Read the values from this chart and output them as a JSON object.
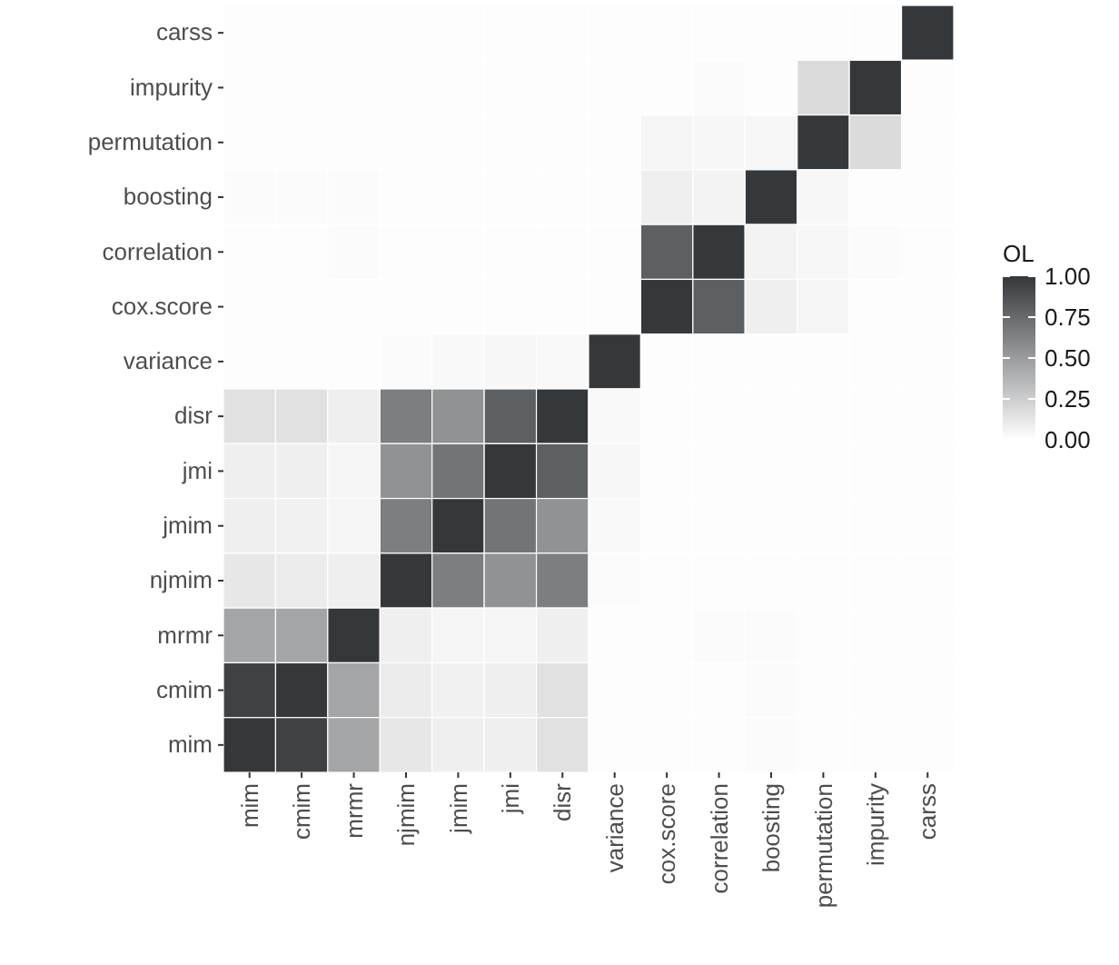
{
  "chart_data": {
    "type": "heatmap",
    "legend_title": "OL",
    "categories": [
      "mim",
      "cmim",
      "mrmr",
      "njmim",
      "jmim",
      "jmi",
      "disr",
      "variance",
      "cox.score",
      "correlation",
      "boosting",
      "permutation",
      "impurity",
      "carss"
    ],
    "y_categories": [
      "carss",
      "impurity",
      "permutation",
      "boosting",
      "correlation",
      "cox.score",
      "variance",
      "disr",
      "jmi",
      "jmim",
      "njmim",
      "mrmr",
      "cmim",
      "mim"
    ],
    "cells": [
      [
        0.01,
        0.01,
        0.01,
        0.01,
        0.01,
        0.01,
        0.01,
        0.01,
        0.01,
        0.01,
        0.01,
        0.01,
        0.01,
        1
      ],
      [
        0.01,
        0.01,
        0.01,
        0.01,
        0.01,
        0.01,
        0.01,
        0.01,
        0.01,
        0.02,
        0.01,
        0.18,
        1,
        0.01
      ],
      [
        0.01,
        0.01,
        0.01,
        0.01,
        0.01,
        0.01,
        0.01,
        0.01,
        0.05,
        0.04,
        0.04,
        1,
        0.18,
        0.01
      ],
      [
        0.02,
        0.02,
        0.02,
        0.01,
        0.01,
        0.01,
        0.01,
        0.01,
        0.08,
        0.06,
        1,
        0.04,
        0.01,
        0.01
      ],
      [
        0.01,
        0.01,
        0.02,
        0.01,
        0.01,
        0.01,
        0.01,
        0.01,
        0.8,
        1,
        0.06,
        0.04,
        0.02,
        0.01
      ],
      [
        0.01,
        0.01,
        0.01,
        0.01,
        0.01,
        0.01,
        0.01,
        0.01,
        1,
        0.8,
        0.08,
        0.05,
        0.01,
        0.01
      ],
      [
        0.01,
        0.01,
        0.01,
        0.02,
        0.03,
        0.04,
        0.03,
        1,
        0.01,
        0.01,
        0.01,
        0.01,
        0.01,
        0.01
      ],
      [
        0.15,
        0.15,
        0.08,
        0.65,
        0.55,
        0.8,
        1,
        0.03,
        0.01,
        0.01,
        0.01,
        0.01,
        0.01,
        0.01
      ],
      [
        0.08,
        0.08,
        0.05,
        0.55,
        0.7,
        1,
        0.8,
        0.04,
        0.01,
        0.01,
        0.01,
        0.01,
        0.01,
        0.01
      ],
      [
        0.08,
        0.07,
        0.05,
        0.65,
        1,
        0.7,
        0.55,
        0.03,
        0.01,
        0.01,
        0.01,
        0.01,
        0.01,
        0.01
      ],
      [
        0.12,
        0.1,
        0.08,
        1,
        0.65,
        0.55,
        0.65,
        0.02,
        0.01,
        0.01,
        0.01,
        0.01,
        0.01,
        0.01
      ],
      [
        0.45,
        0.45,
        1,
        0.08,
        0.05,
        0.05,
        0.08,
        0.01,
        0.01,
        0.02,
        0.02,
        0.01,
        0.01,
        0.01
      ],
      [
        0.95,
        1,
        0.45,
        0.1,
        0.07,
        0.08,
        0.15,
        0.01,
        0.01,
        0.01,
        0.02,
        0.01,
        0.01,
        0.01
      ],
      [
        1,
        0.95,
        0.45,
        0.12,
        0.08,
        0.08,
        0.15,
        0.01,
        0.01,
        0.01,
        0.02,
        0.01,
        0.01,
        0.01
      ]
    ],
    "colors": [
      "#ffffff",
      "#35383b"
    ],
    "clim": [
      0,
      1
    ],
    "cticks": [
      {
        "value": 0,
        "label": "0.00"
      },
      {
        "value": 0.25,
        "label": "0.25"
      },
      {
        "value": 0.5,
        "label": "0.50"
      },
      {
        "value": 0.75,
        "label": "0.75"
      },
      {
        "value": 1,
        "label": "1.00"
      }
    ]
  }
}
